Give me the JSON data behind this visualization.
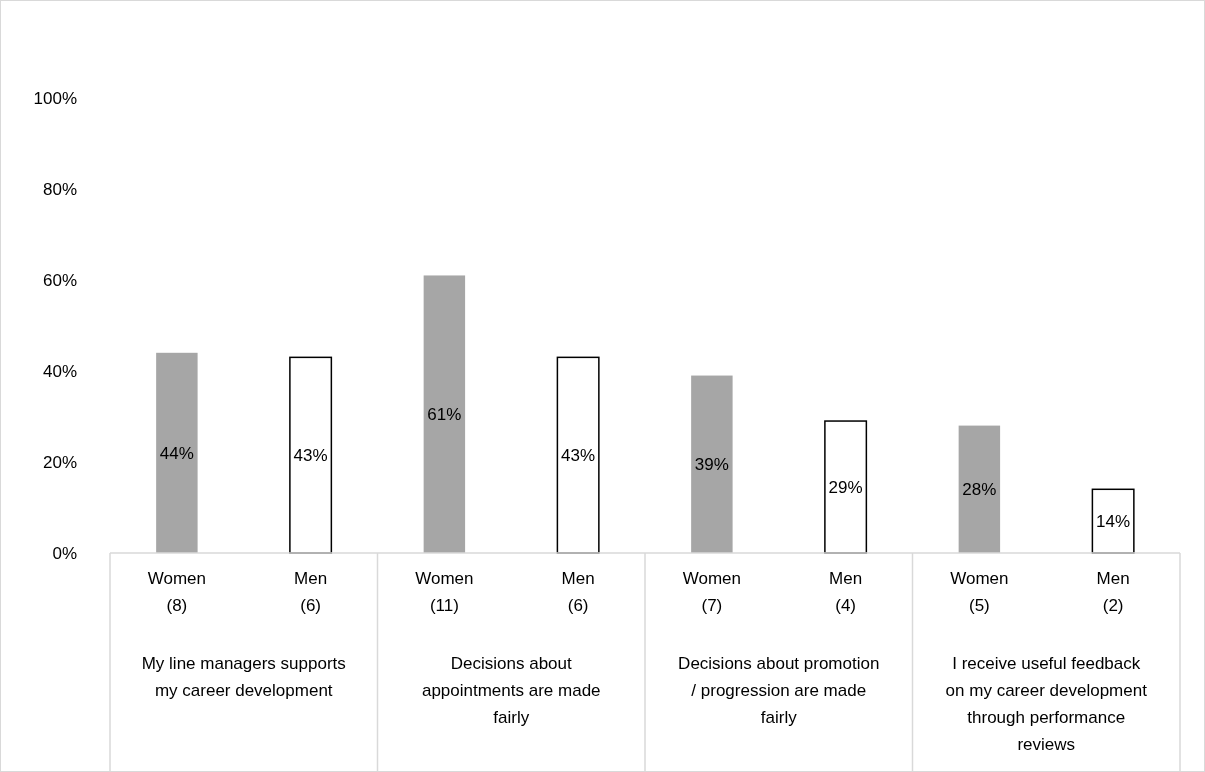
{
  "chart_data": {
    "type": "bar",
    "categories": [
      "Women\n(8)",
      "Men\n(6)",
      "Women\n(11)",
      "Men\n(6)",
      "Women\n(7)",
      "Men\n(4)",
      "Women\n(5)",
      "Men\n(2)"
    ],
    "values": [
      44,
      43,
      61,
      43,
      39,
      29,
      28,
      14
    ],
    "colors": [
      "#a6a6a6",
      "#ffffff",
      "#a6a6a6",
      "#ffffff",
      "#a6a6a6",
      "#ffffff",
      "#a6a6a6",
      "#ffffff"
    ],
    "ylim": [
      0,
      100
    ],
    "yticks": [
      {
        "value": 0,
        "label": "0%"
      },
      {
        "value": 20,
        "label": "20%"
      },
      {
        "value": 40,
        "label": "40%"
      },
      {
        "value": 60,
        "label": "60%"
      },
      {
        "value": 80,
        "label": "80%"
      },
      {
        "value": 100,
        "label": "100%"
      }
    ],
    "value_labels": [
      "44%",
      "43%",
      "61%",
      "43%",
      "39%",
      "29%",
      "28%",
      "14%"
    ],
    "annotations": [
      "My line managers supports my career development",
      "Decisions about appointments are made fairly",
      "Decisions about promotion / progression are made fairly",
      "I receive useful feedback on my career development through performance reviews"
    ]
  }
}
